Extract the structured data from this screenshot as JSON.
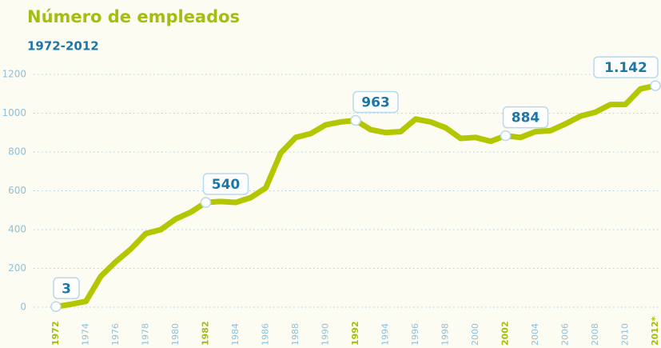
{
  "chart_data": {
    "type": "line",
    "title": "Número de empleados",
    "subtitle": "1972-2012",
    "x": [
      1972,
      1973,
      1974,
      1975,
      1976,
      1977,
      1978,
      1979,
      1980,
      1981,
      1982,
      1983,
      1984,
      1985,
      1986,
      1987,
      1988,
      1989,
      1990,
      1991,
      1992,
      1993,
      1994,
      1995,
      1996,
      1997,
      1998,
      1999,
      2000,
      2001,
      2002,
      2003,
      2004,
      2005,
      2006,
      2007,
      2008,
      2009,
      2010,
      2011,
      2012
    ],
    "values": [
      3,
      15,
      30,
      160,
      235,
      300,
      380,
      400,
      455,
      490,
      540,
      545,
      540,
      565,
      615,
      795,
      875,
      895,
      940,
      955,
      963,
      915,
      900,
      905,
      970,
      955,
      925,
      870,
      875,
      855,
      884,
      875,
      905,
      910,
      945,
      985,
      1005,
      1045,
      1045,
      1125,
      1142
    ],
    "value_labels": [
      "3",
      null,
      null,
      null,
      null,
      null,
      null,
      null,
      null,
      null,
      "540",
      null,
      null,
      null,
      null,
      null,
      null,
      null,
      null,
      null,
      "963",
      null,
      null,
      null,
      null,
      null,
      null,
      null,
      null,
      null,
      "884",
      null,
      null,
      null,
      null,
      null,
      null,
      null,
      null,
      null,
      "1.142"
    ],
    "color": "#b3c700",
    "xlim": [
      1972,
      2012
    ],
    "xticks": [
      {
        "value": 1972,
        "label": "1972",
        "bold": true
      },
      1974,
      1976,
      1978,
      1980,
      {
        "value": 1982,
        "label": "1982",
        "bold": true
      },
      1984,
      1986,
      1988,
      1990,
      {
        "value": 1992,
        "label": "1992",
        "bold": true
      },
      1994,
      1996,
      1998,
      2000,
      {
        "value": 2002,
        "label": "2002",
        "bold": true
      },
      2004,
      2006,
      2008,
      2010,
      {
        "value": 2012,
        "label": "2012*",
        "bold": true
      }
    ],
    "ylim": [
      0,
      1200
    ],
    "yticks": [
      0,
      200,
      400,
      600,
      800,
      1000,
      1200
    ],
    "grid": true
  }
}
